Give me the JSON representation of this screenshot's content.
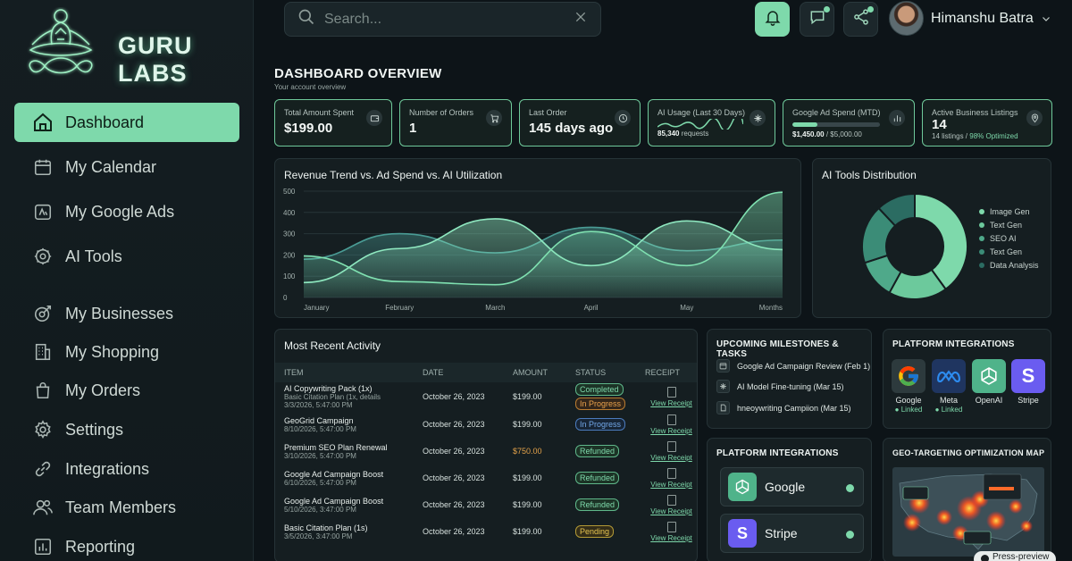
{
  "brand": {
    "name": "GURU LABS"
  },
  "sidebar": {
    "items": [
      {
        "label": "Dashboard",
        "icon": "home-icon",
        "active": true
      },
      {
        "label": "My Calendar",
        "icon": "calendar-icon"
      },
      {
        "label": "My Google Ads",
        "icon": "ads-icon"
      },
      {
        "label": "AI Tools",
        "icon": "chip-icon"
      },
      {
        "label": "My Businesses",
        "icon": "target-icon"
      },
      {
        "label": "My Shopping",
        "icon": "building-icon"
      },
      {
        "label": "My Orders",
        "icon": "bag-icon"
      },
      {
        "label": "Settings",
        "icon": "gear-icon"
      },
      {
        "label": "Integrations",
        "icon": "link-icon"
      },
      {
        "label": "Team Members",
        "icon": "team-icon"
      },
      {
        "label": "Reporting",
        "icon": "report-icon"
      }
    ]
  },
  "search": {
    "placeholder": "Search..."
  },
  "user": {
    "name": "Himanshu Batra"
  },
  "header": {
    "title": "DASHBOARD OVERVIEW",
    "subtitle": "Your account overview"
  },
  "stats": [
    {
      "title": "Total Amount Spent",
      "value": "$199.00",
      "icon": "wallet-icon"
    },
    {
      "title": "Number of Orders",
      "value": "1",
      "icon": "cart-icon"
    },
    {
      "title": "Last Order",
      "value": "145 days ago",
      "icon": "clock-icon"
    },
    {
      "title": "AI Usage (Last 30 Days)",
      "value": "85,340",
      "suffix": "requests",
      "icon": "ai-icon"
    },
    {
      "title": "Google Ad Spend (MTD)",
      "value": "$1,450.00",
      "suffix": "/ $5,000.00",
      "progress": 0.29,
      "icon": "bar-chart-icon"
    },
    {
      "title": "Active Business Listings",
      "value": "14",
      "suffix": "14 listings /",
      "highlight": "98% Optimized",
      "icon": "location-icon"
    }
  ],
  "chart_data": [
    {
      "type": "area",
      "title": "Revenue Trend vs. Ad Spend vs. AI Utilization",
      "x": [
        "January",
        "February",
        "March",
        "April",
        "May",
        "Months"
      ],
      "ylim": [
        0,
        500
      ],
      "yticks": [
        0,
        100,
        200,
        300,
        400,
        500
      ],
      "series": [
        {
          "values": [
            195,
            75,
            60,
            310,
            150,
            495
          ],
          "color": "#7fe0b0"
        },
        {
          "values": [
            70,
            230,
            370,
            150,
            360,
            225
          ],
          "color": "#8fe8c0"
        },
        {
          "values": [
            180,
            300,
            210,
            330,
            220,
            270
          ],
          "color": "#4a9c95"
        }
      ],
      "grid": true
    },
    {
      "type": "pie",
      "title": "AI Tools Distribution",
      "labels": [
        "Image Gen",
        "Text Gen",
        "SEO AI",
        "Text Gen",
        "Data Analysis"
      ],
      "values": [
        40,
        18,
        12,
        18,
        12
      ],
      "colors": [
        "#7ed9ab",
        "#6cc99c",
        "#4fa98a",
        "#3b8c77",
        "#2b6c62"
      ],
      "legend": "right"
    }
  ],
  "activity": {
    "title": "Most Recent Activity",
    "columns": [
      "ITEM",
      "DATE",
      "AMOUNT",
      "STATUS",
      "RECEIPT"
    ],
    "receipt_label": "View Receipt",
    "rows": [
      {
        "item": "AI Copywriting Pack (1x)",
        "sub1": "Basic Citation Plan (1x, details",
        "sub2": "3/3/2026, 5:47:00 PM",
        "date": "October 26, 2023",
        "amount": "$199.00",
        "amount_color": "green",
        "statuses": [
          {
            "label": "Completed",
            "tone": "green"
          },
          {
            "label": "In Progress",
            "tone": "orange"
          }
        ]
      },
      {
        "item": "GeoGrid Campaign",
        "sub1": "",
        "sub2": "8/10/2026, 5:47:00 PM",
        "date": "October 26, 2023",
        "amount": "$199.00",
        "amount_color": "green",
        "statuses": [
          {
            "label": "In Progress",
            "tone": "blue"
          }
        ]
      },
      {
        "item": "Premium SEO Plan Renewal",
        "sub1": "",
        "sub2": "3/10/2026, 5:47:00 PM",
        "date": "October 26, 2023",
        "amount": "$750.00",
        "amount_color": "orange",
        "statuses": [
          {
            "label": "Refunded",
            "tone": "green"
          }
        ]
      },
      {
        "item": "Google Ad Campaign Boost",
        "sub1": "",
        "sub2": "6/10/2026, 5:47:00 PM",
        "date": "October 26, 2023",
        "amount": "$199.00",
        "amount_color": "green",
        "statuses": [
          {
            "label": "Refunded",
            "tone": "green"
          }
        ]
      },
      {
        "item": "Google Ad Campaign Boost",
        "sub1": "",
        "sub2": "5/10/2026, 3:47:00 PM",
        "date": "October 26, 2023",
        "amount": "$199.00",
        "amount_color": "green",
        "statuses": [
          {
            "label": "Refunded",
            "tone": "green"
          }
        ]
      },
      {
        "item": "Basic Citation Plan (1s)",
        "sub1": "",
        "sub2": "3/5/2026, 3:47:00 PM",
        "date": "October 26, 2023",
        "amount": "$199.00",
        "amount_color": "green",
        "statuses": [
          {
            "label": "Pending",
            "tone": "yellow"
          }
        ]
      }
    ]
  },
  "milestones": {
    "title": "UPCOMING MILESTONES & TASKS",
    "items": [
      {
        "label": "Google Ad Campaign Review (Feb 1)",
        "icon": "calendar-icon"
      },
      {
        "label": "AI Model Fine-tuning (Mar 15)",
        "icon": "ai-icon"
      },
      {
        "label": "hneoywriting Campiion (Mar 15)",
        "icon": "document-icon"
      }
    ]
  },
  "platforms": {
    "title": "PLATFORM INTEGRATIONS",
    "items": [
      {
        "name": "Google",
        "status": "Linked"
      },
      {
        "name": "Meta",
        "status": "Linked"
      },
      {
        "name": "OpenAI",
        "status": ""
      },
      {
        "name": "Stripe",
        "status": ""
      }
    ]
  },
  "platforms2": {
    "title": "PLATFORM INTEGRATIONS",
    "items": [
      {
        "name": "Google"
      },
      {
        "name": "Stripe"
      }
    ]
  },
  "geo": {
    "title": "GEO-TARGETING OPTIMIZATION MAP"
  },
  "footer": {
    "preview": "Press-preview"
  }
}
